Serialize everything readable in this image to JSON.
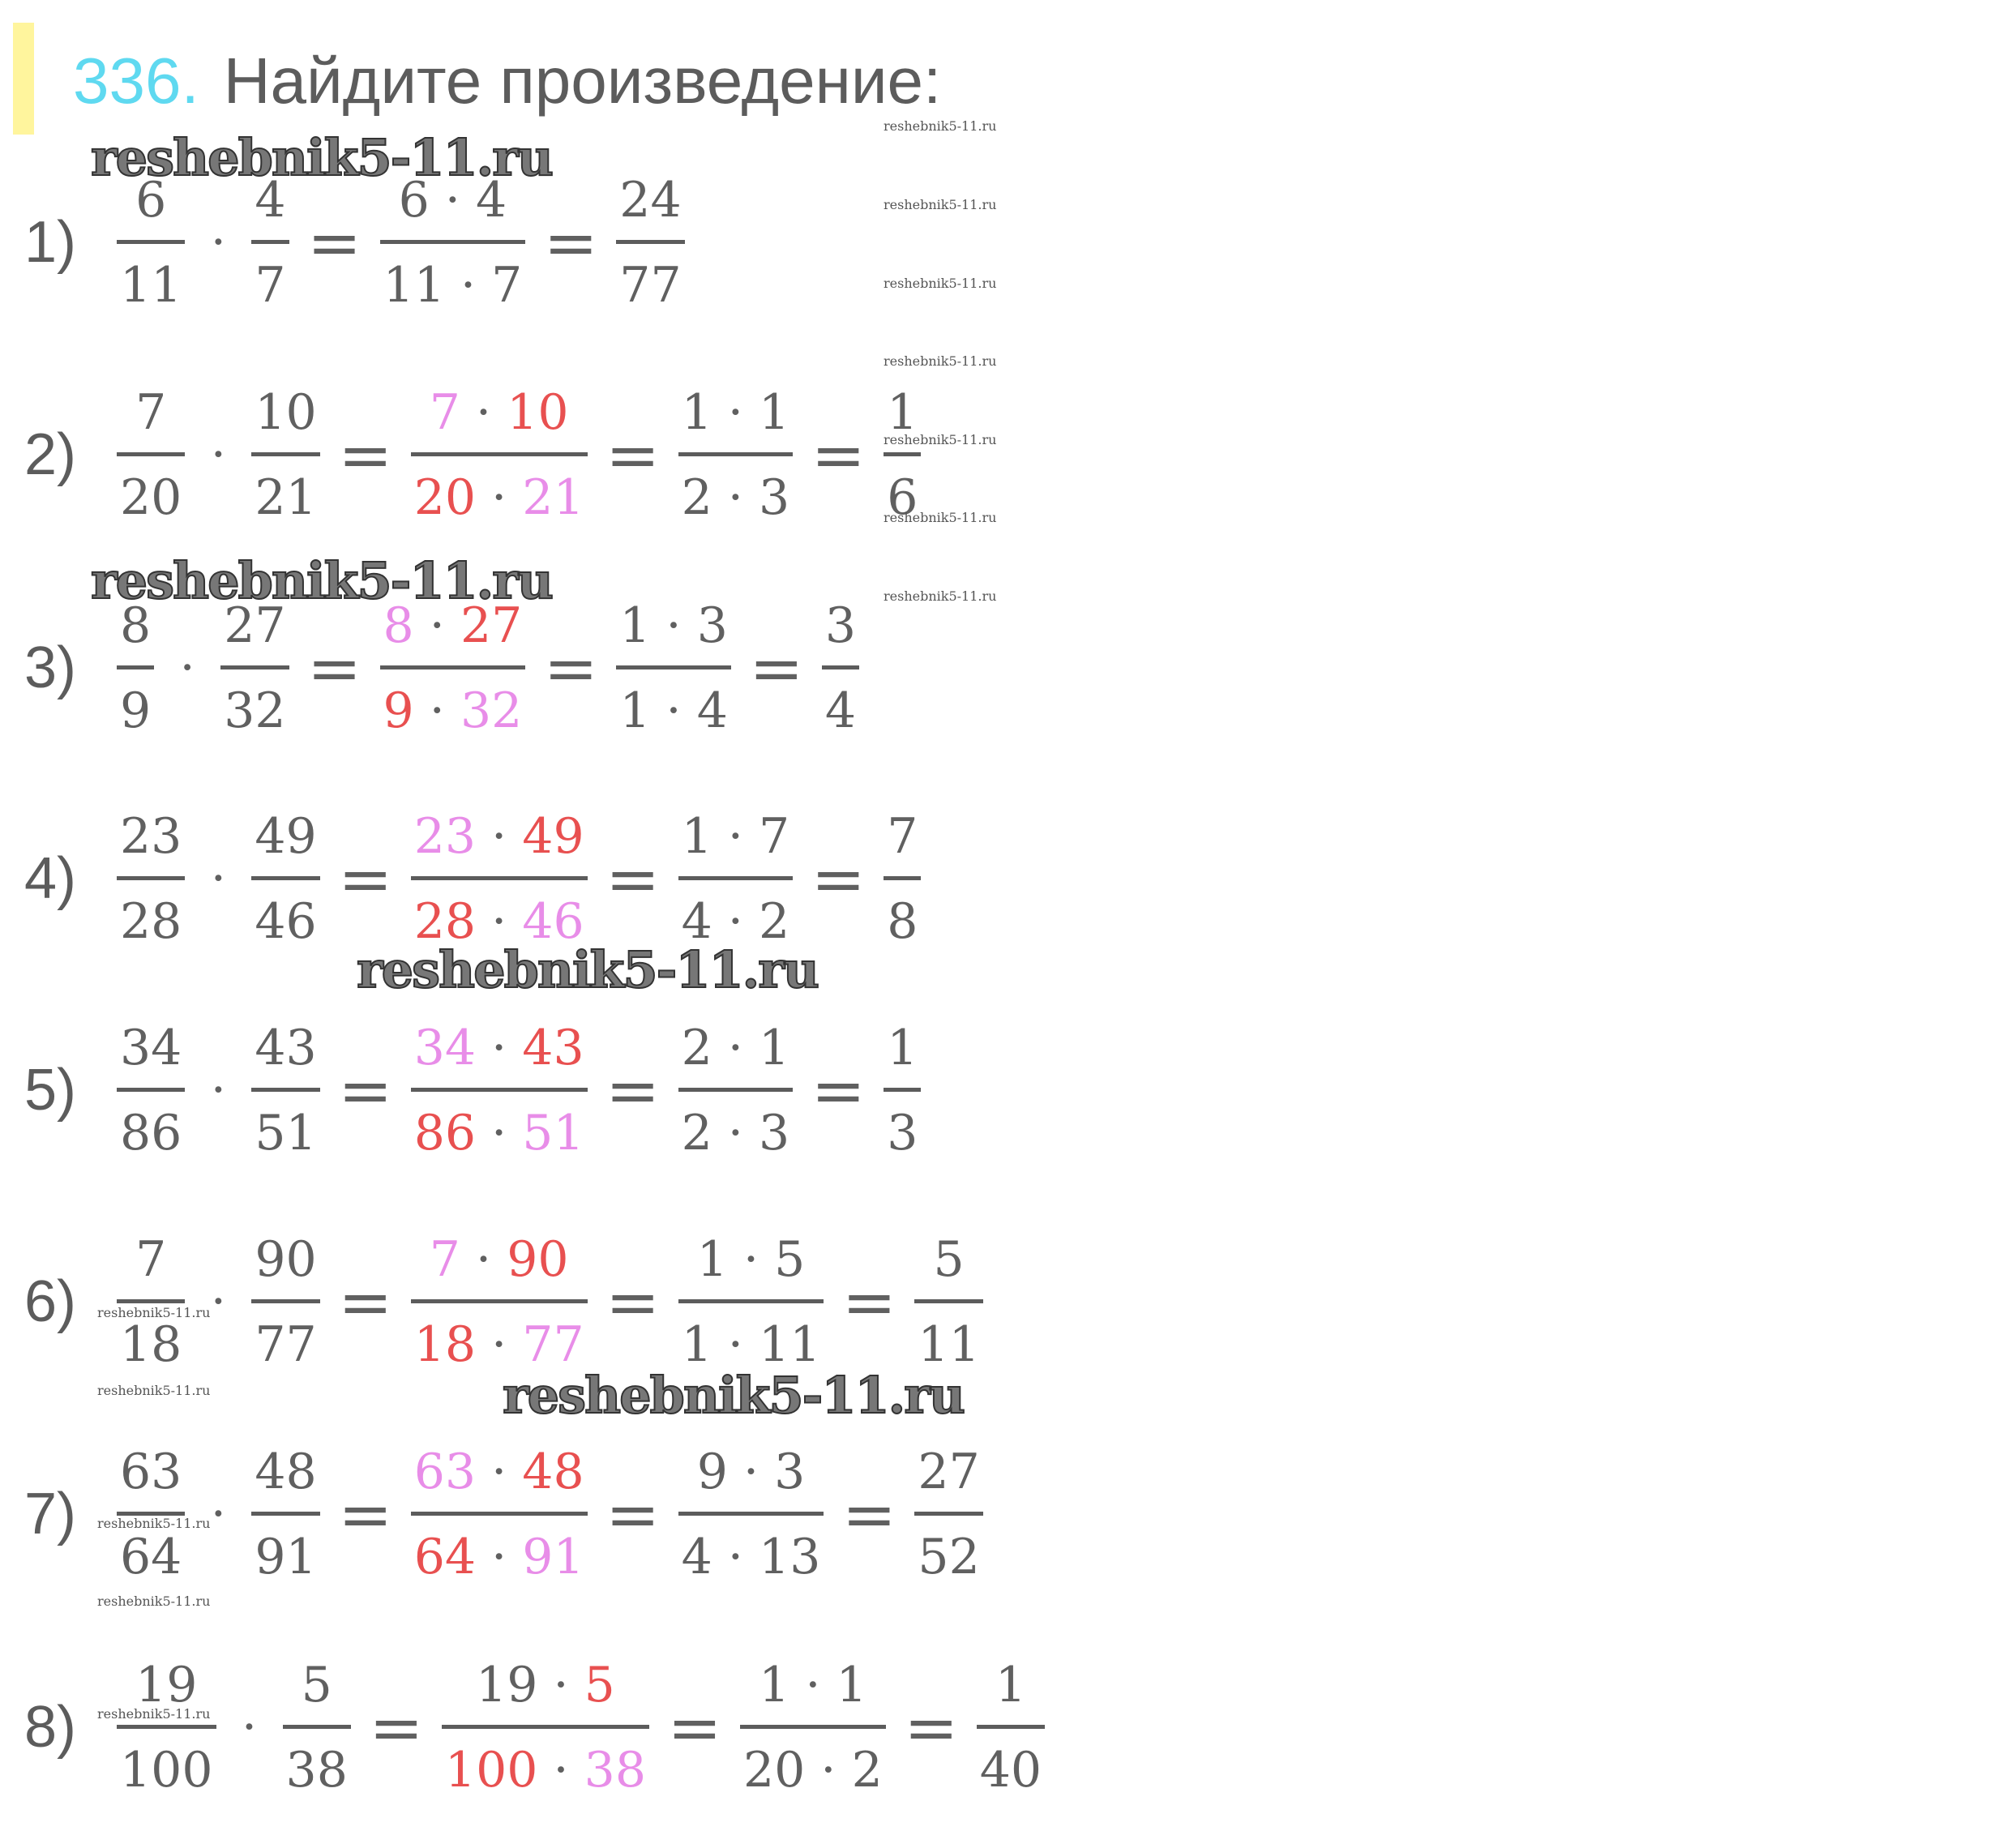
{
  "header": {
    "number": "336.",
    "title": "Найдите произведение:"
  },
  "colors": {
    "text": "#606060",
    "pink": "#e88de8",
    "red": "#e85050",
    "number": "#5fd9f0",
    "bar": "#fff59d"
  },
  "watermark": "reshebnik5-11.ru",
  "problems": [
    {
      "label": "1)",
      "terms": [
        {
          "n": [
            {
              "t": "6"
            }
          ],
          "d": [
            {
              "t": "11"
            }
          ]
        },
        {
          "op": "·"
        },
        {
          "n": [
            {
              "t": "4"
            }
          ],
          "d": [
            {
              "t": "7"
            }
          ]
        },
        {
          "op": "="
        },
        {
          "n": [
            {
              "t": "6 · 4"
            }
          ],
          "d": [
            {
              "t": "11 · 7"
            }
          ]
        },
        {
          "op": "="
        },
        {
          "n": [
            {
              "t": "24"
            }
          ],
          "d": [
            {
              "t": "77"
            }
          ]
        }
      ]
    },
    {
      "label": "2)",
      "terms": [
        {
          "n": [
            {
              "t": "7"
            }
          ],
          "d": [
            {
              "t": "20"
            }
          ]
        },
        {
          "op": "·"
        },
        {
          "n": [
            {
              "t": "10"
            }
          ],
          "d": [
            {
              "t": "21"
            }
          ]
        },
        {
          "op": "="
        },
        {
          "n": [
            {
              "t": "7",
              "c": "pink"
            },
            {
              "t": " · "
            },
            {
              "t": "10",
              "c": "red"
            }
          ],
          "d": [
            {
              "t": "20",
              "c": "red"
            },
            {
              "t": " · "
            },
            {
              "t": "21",
              "c": "pink"
            }
          ]
        },
        {
          "op": "="
        },
        {
          "n": [
            {
              "t": "1 · 1"
            }
          ],
          "d": [
            {
              "t": "2 · 3"
            }
          ]
        },
        {
          "op": "="
        },
        {
          "n": [
            {
              "t": "1"
            }
          ],
          "d": [
            {
              "t": "6"
            }
          ]
        }
      ]
    },
    {
      "label": "3)",
      "terms": [
        {
          "n": [
            {
              "t": "8"
            }
          ],
          "d": [
            {
              "t": "9"
            }
          ]
        },
        {
          "op": "·"
        },
        {
          "n": [
            {
              "t": "27"
            }
          ],
          "d": [
            {
              "t": "32"
            }
          ]
        },
        {
          "op": "="
        },
        {
          "n": [
            {
              "t": "8",
              "c": "pink"
            },
            {
              "t": " · "
            },
            {
              "t": "27",
              "c": "red"
            }
          ],
          "d": [
            {
              "t": "9",
              "c": "red"
            },
            {
              "t": " · "
            },
            {
              "t": "32",
              "c": "pink"
            }
          ]
        },
        {
          "op": "="
        },
        {
          "n": [
            {
              "t": "1 · 3"
            }
          ],
          "d": [
            {
              "t": "1 · 4"
            }
          ]
        },
        {
          "op": "="
        },
        {
          "n": [
            {
              "t": "3"
            }
          ],
          "d": [
            {
              "t": "4"
            }
          ]
        }
      ]
    },
    {
      "label": "4)",
      "terms": [
        {
          "n": [
            {
              "t": "23"
            }
          ],
          "d": [
            {
              "t": "28"
            }
          ]
        },
        {
          "op": "·"
        },
        {
          "n": [
            {
              "t": "49"
            }
          ],
          "d": [
            {
              "t": "46"
            }
          ]
        },
        {
          "op": "="
        },
        {
          "n": [
            {
              "t": "23",
              "c": "pink"
            },
            {
              "t": " · "
            },
            {
              "t": "49",
              "c": "red"
            }
          ],
          "d": [
            {
              "t": "28",
              "c": "red"
            },
            {
              "t": " · "
            },
            {
              "t": "46",
              "c": "pink"
            }
          ]
        },
        {
          "op": "="
        },
        {
          "n": [
            {
              "t": "1 · 7"
            }
          ],
          "d": [
            {
              "t": "4 · 2"
            }
          ]
        },
        {
          "op": "="
        },
        {
          "n": [
            {
              "t": "7"
            }
          ],
          "d": [
            {
              "t": "8"
            }
          ]
        }
      ]
    },
    {
      "label": "5)",
      "terms": [
        {
          "n": [
            {
              "t": "34"
            }
          ],
          "d": [
            {
              "t": "86"
            }
          ]
        },
        {
          "op": "·"
        },
        {
          "n": [
            {
              "t": "43"
            }
          ],
          "d": [
            {
              "t": "51"
            }
          ]
        },
        {
          "op": "="
        },
        {
          "n": [
            {
              "t": "34",
              "c": "pink"
            },
            {
              "t": " · "
            },
            {
              "t": "43",
              "c": "red"
            }
          ],
          "d": [
            {
              "t": "86",
              "c": "red"
            },
            {
              "t": " · "
            },
            {
              "t": "51",
              "c": "pink"
            }
          ]
        },
        {
          "op": "="
        },
        {
          "n": [
            {
              "t": "2 · 1"
            }
          ],
          "d": [
            {
              "t": "2 · 3"
            }
          ]
        },
        {
          "op": "="
        },
        {
          "n": [
            {
              "t": "1"
            }
          ],
          "d": [
            {
              "t": "3"
            }
          ]
        }
      ]
    },
    {
      "label": "6)",
      "terms": [
        {
          "n": [
            {
              "t": "7"
            }
          ],
          "d": [
            {
              "t": "18"
            }
          ]
        },
        {
          "op": "·"
        },
        {
          "n": [
            {
              "t": "90"
            }
          ],
          "d": [
            {
              "t": "77"
            }
          ]
        },
        {
          "op": "="
        },
        {
          "n": [
            {
              "t": "7",
              "c": "pink"
            },
            {
              "t": " · "
            },
            {
              "t": "90",
              "c": "red"
            }
          ],
          "d": [
            {
              "t": "18",
              "c": "red"
            },
            {
              "t": " · "
            },
            {
              "t": "77",
              "c": "pink"
            }
          ]
        },
        {
          "op": "="
        },
        {
          "n": [
            {
              "t": "1 · 5"
            }
          ],
          "d": [
            {
              "t": "1 · 11"
            }
          ]
        },
        {
          "op": "="
        },
        {
          "n": [
            {
              "t": "5"
            }
          ],
          "d": [
            {
              "t": "11"
            }
          ]
        }
      ]
    },
    {
      "label": "7)",
      "terms": [
        {
          "n": [
            {
              "t": "63"
            }
          ],
          "d": [
            {
              "t": "64"
            }
          ]
        },
        {
          "op": "·"
        },
        {
          "n": [
            {
              "t": "48"
            }
          ],
          "d": [
            {
              "t": "91"
            }
          ]
        },
        {
          "op": "="
        },
        {
          "n": [
            {
              "t": "63",
              "c": "pink"
            },
            {
              "t": " · "
            },
            {
              "t": "48",
              "c": "red"
            }
          ],
          "d": [
            {
              "t": "64",
              "c": "red"
            },
            {
              "t": " · "
            },
            {
              "t": "91",
              "c": "pink"
            }
          ]
        },
        {
          "op": "="
        },
        {
          "n": [
            {
              "t": "9 · 3"
            }
          ],
          "d": [
            {
              "t": "4 · 13"
            }
          ]
        },
        {
          "op": "="
        },
        {
          "n": [
            {
              "t": "27"
            }
          ],
          "d": [
            {
              "t": "52"
            }
          ]
        }
      ]
    },
    {
      "label": "8)",
      "terms": [
        {
          "n": [
            {
              "t": "19"
            }
          ],
          "d": [
            {
              "t": "100"
            }
          ]
        },
        {
          "op": "·"
        },
        {
          "n": [
            {
              "t": "5"
            }
          ],
          "d": [
            {
              "t": "38"
            }
          ]
        },
        {
          "op": "="
        },
        {
          "n": [
            {
              "t": "19 · "
            },
            {
              "t": "5",
              "c": "red"
            }
          ],
          "d": [
            {
              "t": "100",
              "c": "red"
            },
            {
              "t": " · "
            },
            {
              "t": "38",
              "c": "pink"
            }
          ]
        },
        {
          "op": "="
        },
        {
          "n": [
            {
              "t": "1 · 1"
            }
          ],
          "d": [
            {
              "t": "20 · 2"
            }
          ]
        },
        {
          "op": "="
        },
        {
          "n": [
            {
              "t": "1"
            }
          ],
          "d": [
            {
              "t": "40"
            }
          ]
        }
      ]
    }
  ]
}
